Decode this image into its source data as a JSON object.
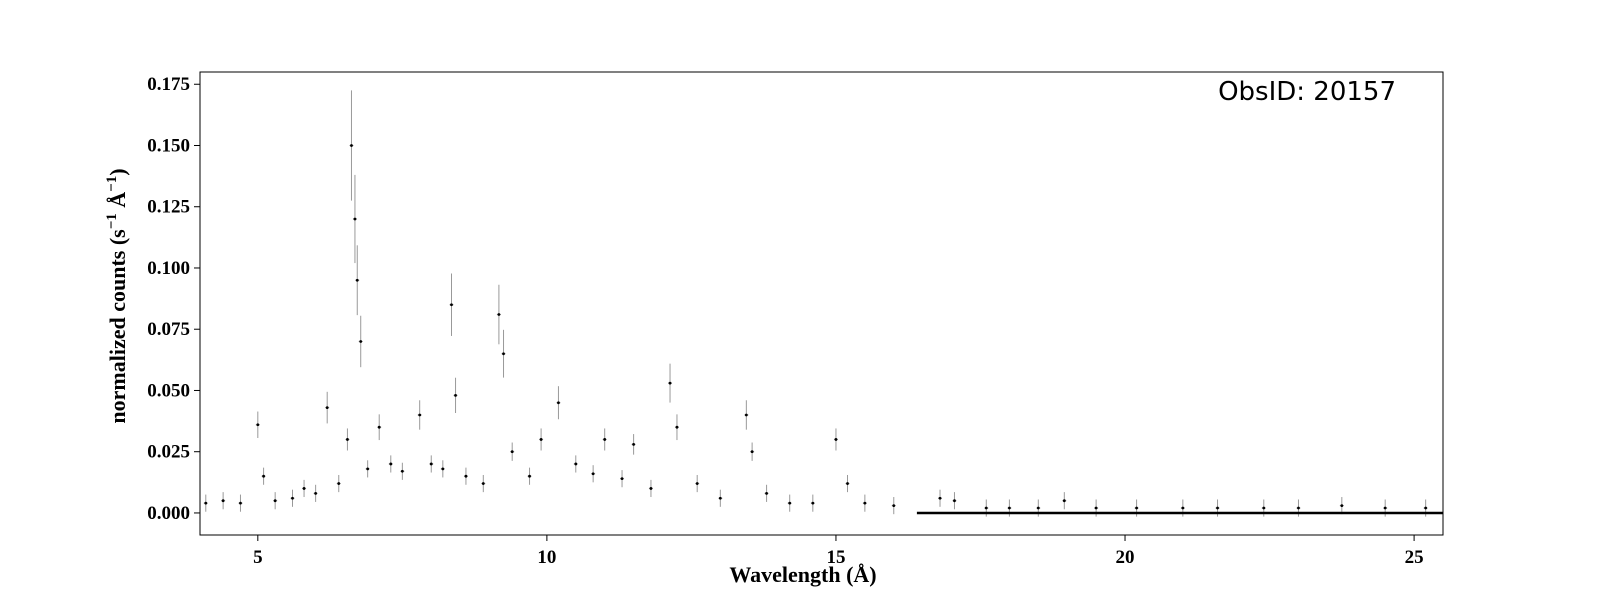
{
  "chart_data": {
    "type": "scatter",
    "title": "",
    "xlabel": "Wavelength (Å)",
    "ylabel_parts": [
      "normalized counts (s",
      "−1",
      " Å",
      "−1",
      ")"
    ],
    "annotation": "ObsID: 20157",
    "xlim": [
      4.0,
      25.5
    ],
    "ylim": [
      -0.009,
      0.18
    ],
    "xticks": [
      5,
      10,
      15,
      20,
      25
    ],
    "yticks": [
      0.0,
      0.025,
      0.05,
      0.075,
      0.1,
      0.125,
      0.15,
      0.175
    ],
    "ytick_labels": [
      "0.000",
      "0.025",
      "0.050",
      "0.075",
      "0.100",
      "0.125",
      "0.150",
      "0.175"
    ],
    "grid": false,
    "baseline_y": 0.0,
    "colors": {
      "points": "#000000",
      "errorbars": "#999999",
      "baseline": "#000000"
    },
    "series": [
      {
        "style": "points-with-errorbars",
        "points": [
          [
            4.1,
            0.004
          ],
          [
            4.4,
            0.005
          ],
          [
            4.7,
            0.004
          ],
          [
            5.0,
            0.036
          ],
          [
            5.1,
            0.015
          ],
          [
            5.3,
            0.005
          ],
          [
            5.6,
            0.006
          ],
          [
            5.8,
            0.01
          ],
          [
            6.0,
            0.008
          ],
          [
            6.2,
            0.043
          ],
          [
            6.4,
            0.012
          ],
          [
            6.55,
            0.03
          ],
          [
            6.62,
            0.15
          ],
          [
            6.68,
            0.12
          ],
          [
            6.72,
            0.095
          ],
          [
            6.78,
            0.07
          ],
          [
            6.9,
            0.018
          ],
          [
            7.1,
            0.035
          ],
          [
            7.3,
            0.02
          ],
          [
            7.5,
            0.017
          ],
          [
            7.8,
            0.04
          ],
          [
            8.0,
            0.02
          ],
          [
            8.2,
            0.018
          ],
          [
            8.35,
            0.085
          ],
          [
            8.42,
            0.048
          ],
          [
            8.6,
            0.015
          ],
          [
            8.9,
            0.012
          ],
          [
            9.17,
            0.081
          ],
          [
            9.25,
            0.065
          ],
          [
            9.4,
            0.025
          ],
          [
            9.7,
            0.015
          ],
          [
            9.9,
            0.03
          ],
          [
            10.2,
            0.045
          ],
          [
            10.5,
            0.02
          ],
          [
            10.8,
            0.016
          ],
          [
            11.0,
            0.03
          ],
          [
            11.3,
            0.014
          ],
          [
            11.5,
            0.028
          ],
          [
            11.8,
            0.01
          ],
          [
            12.13,
            0.053
          ],
          [
            12.25,
            0.035
          ],
          [
            12.6,
            0.012
          ],
          [
            13.0,
            0.006
          ],
          [
            13.45,
            0.04
          ],
          [
            13.55,
            0.025
          ],
          [
            13.8,
            0.008
          ],
          [
            14.2,
            0.004
          ],
          [
            14.6,
            0.004
          ],
          [
            15.0,
            0.03
          ],
          [
            15.2,
            0.012
          ],
          [
            15.5,
            0.004
          ],
          [
            16.0,
            0.003
          ],
          [
            16.8,
            0.006
          ],
          [
            17.05,
            0.005
          ],
          [
            17.6,
            0.002
          ],
          [
            18.0,
            0.002
          ],
          [
            18.5,
            0.002
          ],
          [
            18.95,
            0.005
          ],
          [
            19.5,
            0.002
          ],
          [
            20.2,
            0.002
          ],
          [
            21.0,
            0.002
          ],
          [
            21.6,
            0.002
          ],
          [
            22.4,
            0.002
          ],
          [
            23.0,
            0.002
          ],
          [
            23.75,
            0.003
          ],
          [
            24.5,
            0.002
          ],
          [
            25.2,
            0.002
          ]
        ]
      }
    ]
  }
}
